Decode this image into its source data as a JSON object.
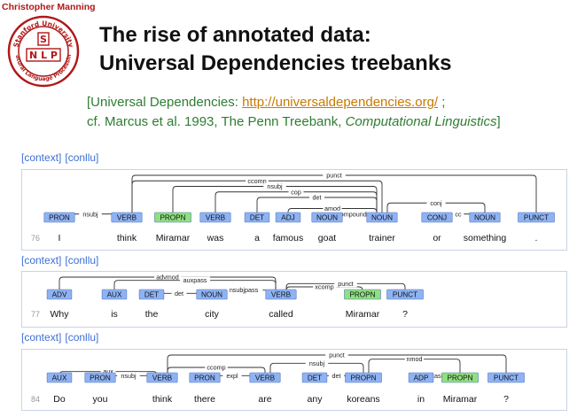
{
  "header": {
    "author": "Christopher Manning",
    "logo": {
      "top": "Stanford University",
      "letters": "S NLP",
      "bottom": "Natural Language Processing"
    },
    "title_line1": "The rise of annotated data:",
    "title_line2": "Universal Dependencies treebanks"
  },
  "references": {
    "line1_prefix": "[Universal Dependencies: ",
    "url": "http://universaldependencies.org/",
    "line1_suffix": " ;",
    "line2_prefix": "cf. Marcus et al. 1993, The Penn Treebank, ",
    "line2_italic": "Computational Linguistics",
    "line2_suffix": "]"
  },
  "colors": {
    "tag_blue": "#8eb3f5",
    "tag_green": "#8fe07e",
    "arc": "#333333",
    "link": "#3d6fd6"
  },
  "links": {
    "context": "[context]",
    "conllu": "[conllu]"
  },
  "sentences": [
    {
      "num": "76",
      "tokens": [
        {
          "word": "I",
          "tag": "PRON"
        },
        {
          "word": "think",
          "tag": "VERB"
        },
        {
          "word": "Miramar",
          "tag": "PROPN",
          "green": true
        },
        {
          "word": "was",
          "tag": "VERB"
        },
        {
          "word": "a",
          "tag": "DET"
        },
        {
          "word": "famous",
          "tag": "ADJ"
        },
        {
          "word": "goat",
          "tag": "NOUN"
        },
        {
          "word": "trainer",
          "tag": "NOUN"
        },
        {
          "word": "or",
          "tag": "CONJ"
        },
        {
          "word": "something",
          "tag": "NOUN"
        },
        {
          "word": ".",
          "tag": "PUNCT"
        }
      ],
      "arcs": [
        {
          "from": 1,
          "to": 0,
          "label": "nsubj"
        },
        {
          "from": 1,
          "to": 10,
          "label": "punct"
        },
        {
          "from": 1,
          "to": 7,
          "label": "ccomp"
        },
        {
          "from": 7,
          "to": 2,
          "label": "nsubj"
        },
        {
          "from": 7,
          "to": 3,
          "label": "cop"
        },
        {
          "from": 7,
          "to": 4,
          "label": "det"
        },
        {
          "from": 7,
          "to": 5,
          "label": "amod"
        },
        {
          "from": 7,
          "to": 6,
          "label": "compound"
        },
        {
          "from": 7,
          "to": 9,
          "label": "conj"
        },
        {
          "from": 9,
          "to": 8,
          "label": "cc"
        }
      ]
    },
    {
      "num": "77",
      "tokens": [
        {
          "word": "Why",
          "tag": "ADV"
        },
        {
          "word": "is",
          "tag": "AUX"
        },
        {
          "word": "the",
          "tag": "DET"
        },
        {
          "word": "city",
          "tag": "NOUN"
        },
        {
          "word": "called",
          "tag": "VERB"
        },
        {
          "word": "Miramar",
          "tag": "PROPN",
          "green": true
        },
        {
          "word": "?",
          "tag": "PUNCT"
        }
      ],
      "arcs": [
        {
          "from": 4,
          "to": 0,
          "label": "advmod"
        },
        {
          "from": 4,
          "to": 1,
          "label": "auxpass"
        },
        {
          "from": 3,
          "to": 2,
          "label": "det"
        },
        {
          "from": 4,
          "to": 3,
          "label": "nsubjpass"
        },
        {
          "from": 4,
          "to": 5,
          "label": "xcomp"
        },
        {
          "from": 4,
          "to": 6,
          "label": "punct"
        }
      ]
    },
    {
      "num": "84",
      "tokens": [
        {
          "word": "Do",
          "tag": "AUX"
        },
        {
          "word": "you",
          "tag": "PRON"
        },
        {
          "word": "think",
          "tag": "VERB"
        },
        {
          "word": "there",
          "tag": "PRON"
        },
        {
          "word": "are",
          "tag": "VERB"
        },
        {
          "word": "any",
          "tag": "DET"
        },
        {
          "word": "koreans",
          "tag": "PROPN"
        },
        {
          "word": "in",
          "tag": "ADP"
        },
        {
          "word": "Miramar",
          "tag": "PROPN",
          "green": true
        },
        {
          "word": "?",
          "tag": "PUNCT"
        }
      ],
      "arcs": [
        {
          "from": 2,
          "to": 0,
          "label": "aux"
        },
        {
          "from": 2,
          "to": 1,
          "label": "nsubj"
        },
        {
          "from": 2,
          "to": 4,
          "label": "ccomp"
        },
        {
          "from": 4,
          "to": 3,
          "label": "expl"
        },
        {
          "from": 4,
          "to": 6,
          "label": "nsubj"
        },
        {
          "from": 6,
          "to": 5,
          "label": "det"
        },
        {
          "from": 6,
          "to": 8,
          "label": "nmod"
        },
        {
          "from": 8,
          "to": 7,
          "label": "case"
        },
        {
          "from": 2,
          "to": 9,
          "label": "punct"
        }
      ]
    }
  ]
}
